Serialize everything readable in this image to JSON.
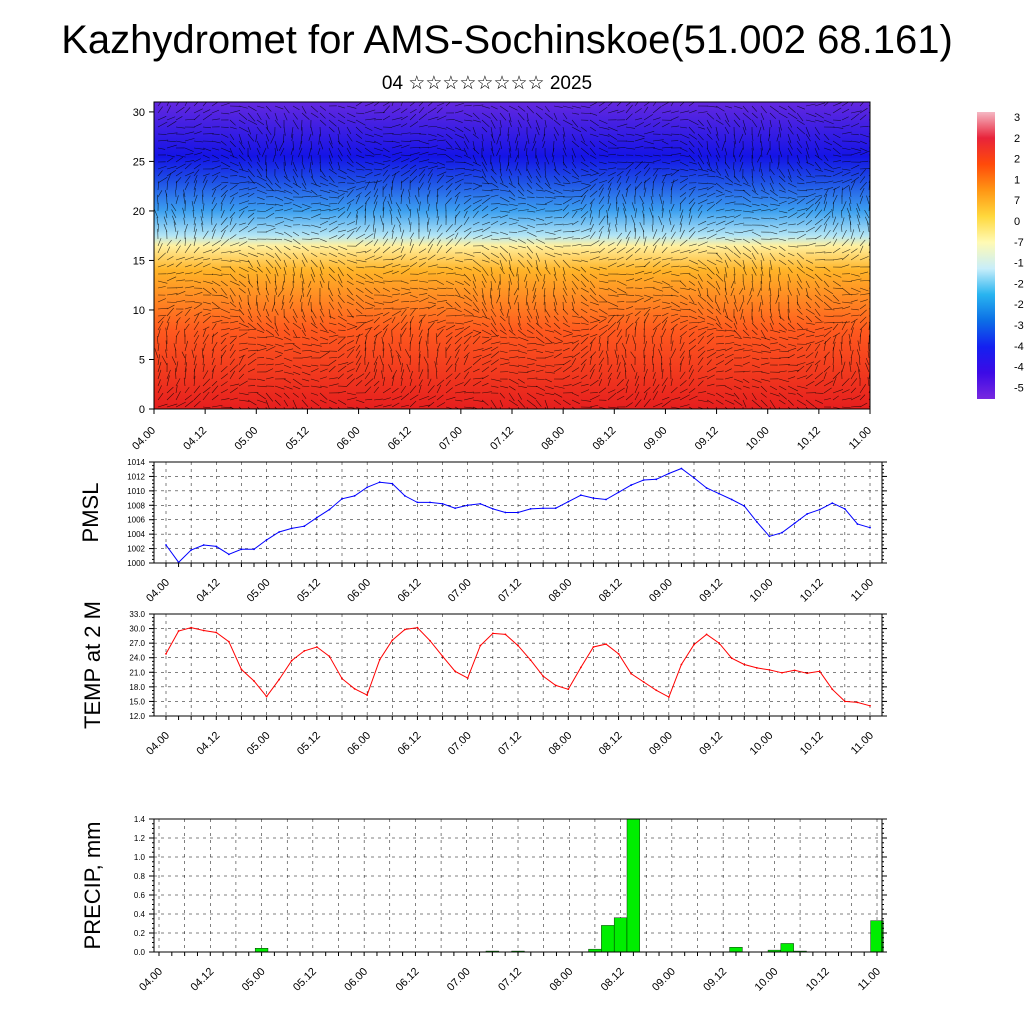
{
  "header": {
    "title": "Kazhydromet for AMS-Sochinskoe(51.002 68.161)",
    "subtitle": "04 ☆☆☆☆☆☆☆☆ 2025"
  },
  "colors": {
    "pmsl_line": "#0000ff",
    "temp_line": "#ff0000",
    "precip_bar": "#00ee00",
    "grid": "#000000",
    "vector": "#000000"
  },
  "chart_data": [
    {
      "id": "profile",
      "type": "heatmap",
      "title": "",
      "xlabel": "",
      "ylabel": "",
      "x_tick_labels": [
        "04.00",
        "04.12",
        "05.00",
        "05.12",
        "06.00",
        "06.12",
        "07.00",
        "07.12",
        "08.00",
        "08.12",
        "09.00",
        "09.12",
        "10.00",
        "10.12",
        "11.00"
      ],
      "y_ticks": [
        0,
        5,
        10,
        15,
        20,
        25,
        30
      ],
      "ylim": [
        0,
        31
      ],
      "colorbar_labels": [
        "3",
        "2",
        "2",
        "1",
        "7",
        "0",
        "-7",
        "-1",
        "-2",
        "-2",
        "-3",
        "-4",
        "-4",
        "-5"
      ],
      "colorbar_stops": [
        "#f5b8c4",
        "#e8233a",
        "#ff4a0a",
        "#ff9614",
        "#ffd83c",
        "#fffab4",
        "#c8eefa",
        "#28b4f0",
        "#0c6ee6",
        "#1420f0",
        "#3c0ae6",
        "#7828e0"
      ],
      "vector_overlay": "wind barbs/arrows",
      "bands": [
        {
          "height": 0,
          "color": "#e61e1e"
        },
        {
          "height": 8,
          "color": "#ff5a1e"
        },
        {
          "height": 14,
          "color": "#ffb428"
        },
        {
          "height": 16.5,
          "color": "#fff0a0"
        },
        {
          "height": 17.5,
          "color": "#b4e6f5"
        },
        {
          "height": 20,
          "color": "#3ca0f0"
        },
        {
          "height": 23,
          "color": "#1e50e6"
        },
        {
          "height": 25.5,
          "color": "#1414e6"
        },
        {
          "height": 31,
          "color": "#6428e0"
        }
      ]
    },
    {
      "id": "pmsl",
      "type": "line",
      "ylabel": "PMSL",
      "xlabel": "",
      "ylim": [
        1000,
        1014
      ],
      "y_ticks": [
        1000,
        1002,
        1004,
        1006,
        1008,
        1010,
        1012,
        1014
      ],
      "x_tick_labels": [
        "04.00",
        "04.12",
        "05.00",
        "05.12",
        "06.00",
        "06.12",
        "07.00",
        "07.12",
        "08.00",
        "08.12",
        "09.00",
        "09.12",
        "10.00",
        "10.12",
        "11.00"
      ],
      "series": [
        {
          "values": [
            1002.5,
            1000.1,
            1001.8,
            1002.5,
            1002.3,
            1001.2,
            1001.9,
            1001.9,
            1003.2,
            1004.3,
            1004.8,
            1005.1,
            1006.3,
            1007.4,
            1008.9,
            1009.3,
            1010.5,
            1011.2,
            1011.0,
            1009.3,
            1008.4,
            1008.4,
            1008.2,
            1007.6,
            1008.0,
            1008.2,
            1007.5,
            1007.0,
            1007.0,
            1007.5,
            1007.6,
            1007.6,
            1008.5,
            1009.4,
            1009.0,
            1008.8,
            1009.8,
            1010.8,
            1011.5,
            1011.6,
            1012.4,
            1013.1,
            1011.8,
            1010.4,
            1009.6,
            1008.8,
            1007.9,
            1005.7,
            1003.7,
            1004.2,
            1005.5,
            1006.8,
            1007.4,
            1008.3,
            1007.5,
            1005.4,
            1004.9
          ]
        }
      ]
    },
    {
      "id": "temp",
      "type": "line",
      "ylabel": "TEMP at 2 M",
      "xlabel": "",
      "ylim": [
        12.0,
        33.0
      ],
      "y_ticks": [
        "12.0",
        "15.0",
        "18.0",
        "21.0",
        "24.0",
        "27.0",
        "30.0",
        "33.0"
      ],
      "x_tick_labels": [
        "04.00",
        "04.12",
        "05.00",
        "05.12",
        "06.00",
        "06.12",
        "07.00",
        "07.12",
        "08.00",
        "08.12",
        "09.00",
        "09.12",
        "10.00",
        "10.12",
        "11.00"
      ],
      "series": [
        {
          "values": [
            24.8,
            29.5,
            30.2,
            29.6,
            29.2,
            27.3,
            21.6,
            19.2,
            16.0,
            19.5,
            23.4,
            25.4,
            26.2,
            24.3,
            19.7,
            17.6,
            16.3,
            23.6,
            27.6,
            29.8,
            30.2,
            27.5,
            24.3,
            21.2,
            19.8,
            26.5,
            29.0,
            28.8,
            26.5,
            23.5,
            20.2,
            18.3,
            17.5,
            22.0,
            26.2,
            26.8,
            24.8,
            20.7,
            19.0,
            17.3,
            15.9,
            22.6,
            26.7,
            28.8,
            27.0,
            23.9,
            22.6,
            21.9,
            21.5,
            20.9,
            21.4,
            20.8,
            21.2,
            17.5,
            15.0,
            14.8,
            14.1
          ]
        }
      ]
    },
    {
      "id": "precip",
      "type": "bar",
      "ylabel": "PRECIP, mm",
      "xlabel": "",
      "ylim": [
        0,
        1.4
      ],
      "y_ticks": [
        "0.0",
        "0.2",
        "0.4",
        "0.6",
        "0.8",
        "1.0",
        "1.2",
        "1.4"
      ],
      "x_tick_labels": [
        "04.00",
        "04.12",
        "05.00",
        "05.12",
        "06.00",
        "06.12",
        "07.00",
        "07.12",
        "08.00",
        "08.12",
        "09.00",
        "09.12",
        "10.00",
        "10.12",
        "11.00"
      ],
      "values": [
        0,
        0,
        0,
        0,
        0,
        0,
        0,
        0,
        0.04,
        0,
        0,
        0,
        0,
        0,
        0,
        0,
        0,
        0,
        0,
        0,
        0,
        0,
        0,
        0,
        0,
        0,
        0.01,
        0,
        0.01,
        0,
        0,
        0,
        0,
        0,
        0.03,
        0.28,
        0.36,
        1.4,
        0,
        0,
        0,
        0,
        0,
        0,
        0,
        0.05,
        0,
        0,
        0.02,
        0.09,
        0.01,
        0,
        0,
        0,
        0,
        0,
        0.33
      ]
    }
  ]
}
